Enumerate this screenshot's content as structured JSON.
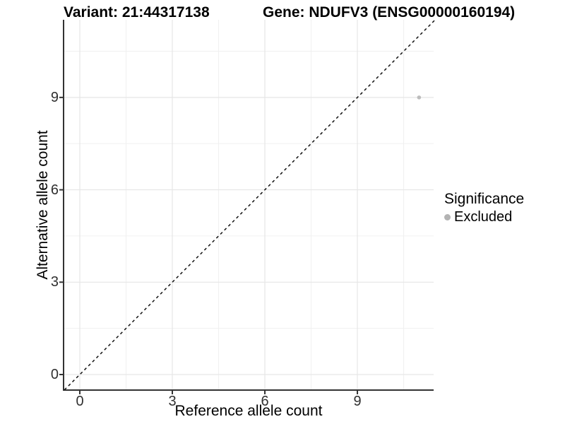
{
  "chart_data": {
    "type": "scatter",
    "titles": {
      "left": "Variant: 21:44317138",
      "right": "Gene: NDUFV3 (ENSG00000160194)"
    },
    "xlabel": "Reference allele count",
    "ylabel": "Alternative allele count",
    "x_ticks": [
      0,
      3,
      6,
      9
    ],
    "y_ticks": [
      0,
      3,
      6,
      9
    ],
    "x_minor_ticks": [
      1.5,
      4.5,
      7.5,
      10.5
    ],
    "y_minor_ticks": [
      1.5,
      4.5,
      7.5,
      10.5
    ],
    "xlim": [
      -0.5,
      11.5
    ],
    "ylim": [
      -0.5,
      11.5
    ],
    "grid": true,
    "reference_line": {
      "kind": "identity",
      "dash": "dashed",
      "color": "#111111"
    },
    "series": [
      {
        "name": "Excluded",
        "color": "#bdbdbd",
        "points": [
          {
            "x": 11,
            "y": 9
          }
        ]
      }
    ],
    "legend": {
      "title": "Significance",
      "position": "right",
      "items": [
        {
          "label": "Excluded",
          "color": "#b3b3b3"
        }
      ]
    },
    "colors": {
      "grid_major": "#e6e6e6",
      "grid_minor": "#f0f0f0",
      "axis_line": "#333333",
      "tick_mark": "#333333"
    }
  }
}
